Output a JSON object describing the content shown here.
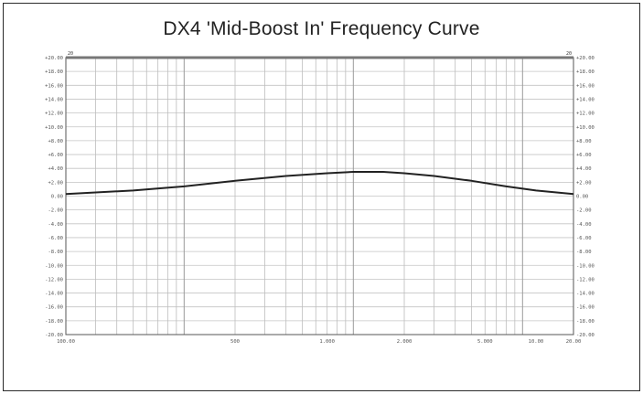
{
  "chart_data": {
    "type": "line",
    "title": "DX4 'Mid-Boost In'  Frequency Curve",
    "xlabel": "",
    "ylabel": "",
    "x_scale": "log",
    "xlim": [
      20,
      20000
    ],
    "ylim": [
      -20,
      20
    ],
    "grid": true,
    "x_ticks": [
      "100.00",
      "500",
      "1.000",
      "2.000",
      "5.000",
      "10.00",
      "20.00"
    ],
    "y_ticks": [
      "+20.00",
      "+18.00",
      "+16.00",
      "+14.00",
      "+12.00",
      "+10.00",
      "+8.00",
      "+6.00",
      "+4.00",
      "+2.00",
      "0.00",
      "-2.00",
      "-4.00",
      "-6.00",
      "-8.00",
      "-10.00",
      "-12.00",
      "-14.00",
      "-16.00",
      "-18.00",
      "-20.00"
    ],
    "corner_labels": {
      "left": "20",
      "right": "20"
    },
    "series": [
      {
        "x": [
          20,
          50,
          100,
          200,
          400,
          700,
          1000,
          1500,
          2000,
          3000,
          5000,
          8000,
          12000,
          20000
        ],
        "values": [
          0.3,
          0.8,
          1.4,
          2.2,
          2.9,
          3.3,
          3.5,
          3.5,
          3.3,
          2.9,
          2.2,
          1.4,
          0.8,
          0.3
        ]
      }
    ]
  }
}
